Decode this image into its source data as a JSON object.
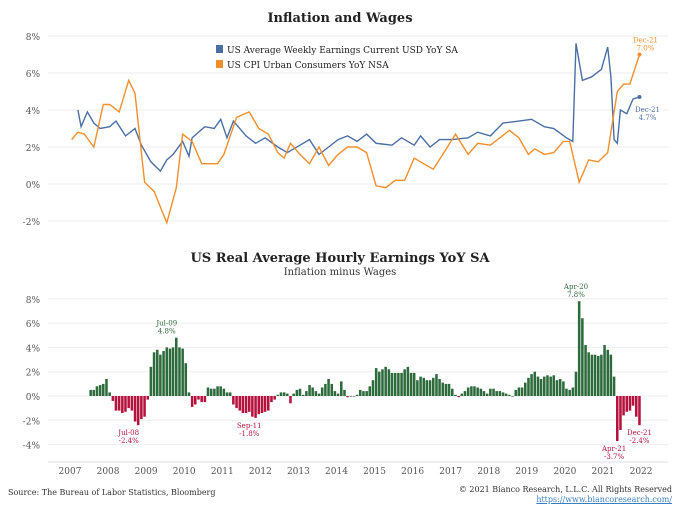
{
  "chart_data": [
    {
      "type": "line",
      "title": "Inflation and Wages",
      "ylim": [
        -2.5,
        8.2
      ],
      "yticks": [
        "-2%",
        "0%",
        "2%",
        "4%",
        "6%",
        "8%"
      ],
      "ytick_values": [
        -2,
        0,
        2,
        4,
        6,
        8
      ],
      "grid": true,
      "legend_placement": "top-center",
      "series": [
        {
          "name": "US Average Weekly Earnings Current USD YoY SA",
          "color": "#4a6fa5",
          "points": [
            [
              "2007-03",
              4.0
            ],
            [
              "2007-04",
              3.1
            ],
            [
              "2007-06",
              3.9
            ],
            [
              "2007-08",
              3.3
            ],
            [
              "2007-10",
              3.0
            ],
            [
              "2008-01",
              3.1
            ],
            [
              "2008-03",
              3.4
            ],
            [
              "2008-06",
              2.6
            ],
            [
              "2008-09",
              3.0
            ],
            [
              "2008-11",
              2.1
            ],
            [
              "2009-02",
              1.2
            ],
            [
              "2009-05",
              0.7
            ],
            [
              "2009-07",
              1.3
            ],
            [
              "2009-09",
              1.6
            ],
            [
              "2009-12",
              2.3
            ],
            [
              "2010-02",
              1.5
            ],
            [
              "2010-03",
              2.5
            ],
            [
              "2010-07",
              3.1
            ],
            [
              "2010-10",
              3.0
            ],
            [
              "2010-12",
              3.5
            ],
            [
              "2011-02",
              2.5
            ],
            [
              "2011-04",
              3.4
            ],
            [
              "2011-08",
              2.6
            ],
            [
              "2011-11",
              2.2
            ],
            [
              "2012-02",
              2.5
            ],
            [
              "2012-06",
              2.0
            ],
            [
              "2012-09",
              1.7
            ],
            [
              "2013-01",
              2.1
            ],
            [
              "2013-04",
              2.4
            ],
            [
              "2013-07",
              1.6
            ],
            [
              "2013-10",
              2.0
            ],
            [
              "2014-01",
              2.4
            ],
            [
              "2014-04",
              2.6
            ],
            [
              "2014-07",
              2.3
            ],
            [
              "2014-10",
              2.7
            ],
            [
              "2015-01",
              2.2
            ],
            [
              "2015-06",
              2.1
            ],
            [
              "2015-09",
              2.5
            ],
            [
              "2016-01",
              2.1
            ],
            [
              "2016-03",
              2.6
            ],
            [
              "2016-06",
              2.0
            ],
            [
              "2016-09",
              2.4
            ],
            [
              "2017-01",
              2.4
            ],
            [
              "2017-06",
              2.5
            ],
            [
              "2017-09",
              2.8
            ],
            [
              "2018-01",
              2.6
            ],
            [
              "2018-05",
              3.3
            ],
            [
              "2018-10",
              3.4
            ],
            [
              "2019-02",
              3.5
            ],
            [
              "2019-06",
              3.1
            ],
            [
              "2019-09",
              3.0
            ],
            [
              "2020-01",
              2.5
            ],
            [
              "2020-03",
              2.3
            ],
            [
              "2020-04",
              7.6
            ],
            [
              "2020-06",
              5.6
            ],
            [
              "2020-09",
              5.8
            ],
            [
              "2020-12",
              6.2
            ],
            [
              "2021-02",
              7.4
            ],
            [
              "2021-03",
              5.8
            ],
            [
              "2021-04",
              2.4
            ],
            [
              "2021-05",
              2.2
            ],
            [
              "2021-06",
              4.0
            ],
            [
              "2021-08",
              3.8
            ],
            [
              "2021-10",
              4.6
            ],
            [
              "2021-12",
              4.7
            ]
          ]
        },
        {
          "name": "US CPI Urban Consumers YoY NSA",
          "color": "#f28e2b",
          "points": [
            [
              "2007-01",
              2.4
            ],
            [
              "2007-03",
              2.8
            ],
            [
              "2007-05",
              2.7
            ],
            [
              "2007-08",
              2.0
            ],
            [
              "2007-11",
              4.3
            ],
            [
              "2008-01",
              4.3
            ],
            [
              "2008-04",
              3.9
            ],
            [
              "2008-07",
              5.6
            ],
            [
              "2008-09",
              4.9
            ],
            [
              "2008-12",
              0.1
            ],
            [
              "2009-03",
              -0.4
            ],
            [
              "2009-07",
              -2.1
            ],
            [
              "2009-10",
              -0.2
            ],
            [
              "2009-12",
              2.7
            ],
            [
              "2010-03",
              2.3
            ],
            [
              "2010-06",
              1.1
            ],
            [
              "2010-11",
              1.1
            ],
            [
              "2011-01",
              1.6
            ],
            [
              "2011-05",
              3.6
            ],
            [
              "2011-09",
              3.9
            ],
            [
              "2011-12",
              3.0
            ],
            [
              "2012-03",
              2.7
            ],
            [
              "2012-06",
              1.7
            ],
            [
              "2012-08",
              1.4
            ],
            [
              "2012-10",
              2.2
            ],
            [
              "2013-01",
              1.6
            ],
            [
              "2013-04",
              1.1
            ],
            [
              "2013-07",
              2.0
            ],
            [
              "2013-10",
              1.0
            ],
            [
              "2014-01",
              1.6
            ],
            [
              "2014-04",
              2.0
            ],
            [
              "2014-07",
              2.0
            ],
            [
              "2014-10",
              1.7
            ],
            [
              "2015-01",
              -0.1
            ],
            [
              "2015-04",
              -0.2
            ],
            [
              "2015-07",
              0.2
            ],
            [
              "2015-10",
              0.2
            ],
            [
              "2016-01",
              1.4
            ],
            [
              "2016-04",
              1.1
            ],
            [
              "2016-07",
              0.8
            ],
            [
              "2016-10",
              1.6
            ],
            [
              "2017-02",
              2.7
            ],
            [
              "2017-06",
              1.6
            ],
            [
              "2017-09",
              2.2
            ],
            [
              "2018-01",
              2.1
            ],
            [
              "2018-07",
              2.9
            ],
            [
              "2018-10",
              2.5
            ],
            [
              "2019-01",
              1.6
            ],
            [
              "2019-03",
              1.9
            ],
            [
              "2019-06",
              1.6
            ],
            [
              "2019-09",
              1.7
            ],
            [
              "2019-12",
              2.3
            ],
            [
              "2020-02",
              2.3
            ],
            [
              "2020-05",
              0.1
            ],
            [
              "2020-08",
              1.3
            ],
            [
              "2020-11",
              1.2
            ],
            [
              "2021-02",
              1.7
            ],
            [
              "2021-05",
              5.0
            ],
            [
              "2021-07",
              5.4
            ],
            [
              "2021-09",
              5.4
            ],
            [
              "2021-12",
              7.0
            ]
          ]
        }
      ],
      "annotations": [
        {
          "date": "2021-12",
          "value": 7.0,
          "label1": "Dec-21",
          "label2": "7.0%",
          "color": "#f28e2b"
        },
        {
          "date": "2021-12",
          "value": 4.7,
          "label1": "Dec-21",
          "label2": "4.7%",
          "color": "#4a6fa5"
        }
      ]
    },
    {
      "type": "bar",
      "title": "US Real Average Hourly Earnings YoY SA",
      "subtitle": "Inflation minus Wages",
      "ylim": [
        -5,
        9
      ],
      "yticks": [
        "-4%",
        "-2%",
        "0%",
        "2%",
        "4%",
        "6%",
        "8%"
      ],
      "ytick_values": [
        -4,
        -2,
        0,
        2,
        4,
        6,
        8
      ],
      "xticks": [
        "2007",
        "2008",
        "2009",
        "2010",
        "2011",
        "2012",
        "2013",
        "2014",
        "2015",
        "2016",
        "2017",
        "2018",
        "2019",
        "2020",
        "2021",
        "2022"
      ],
      "grid": true,
      "last_period": "Dec-21",
      "positive_color": "#2e6b3c",
      "negative_color": "#b5123e",
      "values": [
        0.5,
        0.5,
        0.8,
        0.9,
        1.0,
        1.4,
        0.3,
        -0.4,
        -1.2,
        -1.2,
        -1.4,
        -1.3,
        -1.0,
        -1.2,
        -2.1,
        -2.4,
        -1.9,
        -1.7,
        -0.3,
        2.4,
        3.6,
        3.8,
        3.4,
        3.7,
        4.0,
        3.9,
        4.0,
        4.8,
        4.0,
        3.9,
        2.7,
        0.3,
        -0.9,
        -0.7,
        -0.3,
        -0.5,
        -0.5,
        0.7,
        0.6,
        0.6,
        0.8,
        0.8,
        0.6,
        0.3,
        0.3,
        -0.7,
        -1.0,
        -1.2,
        -1.4,
        -1.4,
        -1.3,
        -1.7,
        -1.8,
        -1.5,
        -1.4,
        -1.3,
        -1.2,
        -0.5,
        -0.3,
        0.1,
        0.3,
        0.3,
        0.2,
        -0.6,
        0.2,
        0.5,
        0.6,
        0.1,
        0.4,
        0.9,
        0.7,
        0.4,
        0.2,
        0.7,
        1.0,
        1.4,
        1.0,
        0.4,
        0.2,
        1.2,
        0.5,
        -0.1,
        0.0,
        0.0,
        0.1,
        0.5,
        0.4,
        0.4,
        0.8,
        1.3,
        2.3,
        2.0,
        2.2,
        2.4,
        2.2,
        1.9,
        1.9,
        1.9,
        1.9,
        2.2,
        2.4,
        1.9,
        1.9,
        1.3,
        1.6,
        1.5,
        1.3,
        1.3,
        1.5,
        1.8,
        1.4,
        1.1,
        1.0,
        1.0,
        0.6,
        0.1,
        -0.1,
        0.2,
        0.4,
        0.7,
        0.8,
        0.8,
        0.7,
        0.6,
        0.4,
        0.2,
        0.6,
        0.6,
        0.4,
        0.4,
        0.3,
        0.2,
        0.1,
        0.0,
        0.5,
        0.7,
        0.7,
        1.1,
        1.5,
        1.8,
        2.0,
        1.6,
        1.4,
        1.6,
        1.7,
        1.6,
        1.7,
        1.3,
        1.4,
        1.2,
        0.6,
        0.5,
        0.7,
        2.0,
        7.8,
        6.4,
        4.2,
        3.6,
        3.4,
        3.4,
        3.3,
        3.4,
        4.2,
        3.8,
        3.4,
        1.6,
        -3.7,
        -2.8,
        -1.6,
        -1.3,
        -1.2,
        -0.8,
        -1.7,
        -2.4
      ],
      "annotations": [
        {
          "date": "2009-07",
          "value": 4.8,
          "label1": "Jul-09",
          "label2": "4.8%",
          "position": "above"
        },
        {
          "date": "2008-07",
          "value": -2.4,
          "label1": "Jul-08",
          "label2": "-2.4%",
          "position": "below"
        },
        {
          "date": "2011-09",
          "value": -1.8,
          "label1": "Sep-11",
          "label2": "-1.8%",
          "position": "below"
        },
        {
          "date": "2020-04",
          "value": 7.8,
          "label1": "Apr-20",
          "label2": "7.8%",
          "position": "above"
        },
        {
          "date": "2021-04",
          "value": -3.7,
          "label1": "Apr-21",
          "label2": "-3.7%",
          "position": "below"
        },
        {
          "date": "2021-12",
          "value": -2.4,
          "label1": "Dec-21",
          "label2": "-2.4%",
          "position": "below"
        }
      ]
    }
  ],
  "footer": {
    "source": "Source: The Bureau of Labor Statistics, Bloomberg",
    "copyright": "© 2021 Bianco Research, L.L.C. All Rights Reserved",
    "url": "https://www.biancoresearch.com/"
  }
}
